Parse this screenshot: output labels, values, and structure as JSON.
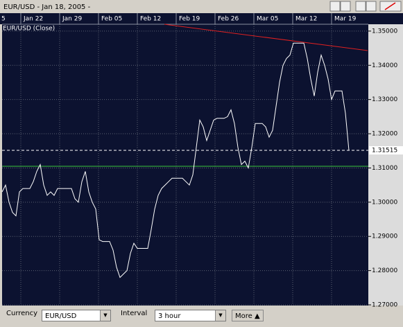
{
  "window_title": "EUR/USD - Jan 18, 2005 -",
  "chart_data": {
    "type": "line",
    "legend_label": "EUR/USD (Close)",
    "x_labels": [
      "5",
      "Jan 22",
      "Jan 29",
      "Feb 05",
      "Feb 12",
      "Feb 19",
      "Feb 26",
      "Mar 05",
      "Mar 12",
      "Mar 19"
    ],
    "ylim": [
      1.27,
      1.352
    ],
    "yticks": [
      {
        "value": 1.27,
        "label": "1.27000"
      },
      {
        "value": 1.28,
        "label": "1.28000"
      },
      {
        "value": 1.29,
        "label": "1.29000"
      },
      {
        "value": 1.3,
        "label": "1.30000"
      },
      {
        "value": 1.31,
        "label": "1.31000"
      },
      {
        "value": 1.32,
        "label": "1.32000"
      },
      {
        "value": 1.33,
        "label": "1.33000"
      },
      {
        "value": 1.34,
        "label": "1.34000"
      },
      {
        "value": 1.35,
        "label": "1.35000"
      }
    ],
    "grid": true,
    "series": [
      {
        "name": "EUR/USD (Close)",
        "color": "#ffffff",
        "values": [
          1.303,
          1.305,
          1.3,
          1.297,
          1.296,
          1.303,
          1.304,
          1.304,
          1.304,
          1.306,
          1.309,
          1.311,
          1.305,
          1.302,
          1.303,
          1.302,
          1.304,
          1.304,
          1.304,
          1.304,
          1.304,
          1.301,
          1.3,
          1.306,
          1.309,
          1.303,
          1.3,
          1.298,
          1.289,
          1.2885,
          1.2885,
          1.2885,
          1.286,
          1.281,
          1.278,
          1.279,
          1.28,
          1.285,
          1.288,
          1.2865,
          1.2865,
          1.2865,
          1.2865,
          1.292,
          1.298,
          1.302,
          1.304,
          1.305,
          1.306,
          1.307,
          1.307,
          1.307,
          1.307,
          1.306,
          1.305,
          1.308,
          1.316,
          1.324,
          1.322,
          1.318,
          1.321,
          1.324,
          1.3245,
          1.3245,
          1.3245,
          1.325,
          1.327,
          1.323,
          1.316,
          1.311,
          1.312,
          1.31,
          1.316,
          1.323,
          1.323,
          1.323,
          1.322,
          1.319,
          1.321,
          1.328,
          1.335,
          1.34,
          1.342,
          1.343,
          1.3465,
          1.3465,
          1.3465,
          1.3465,
          1.342,
          1.336,
          1.331,
          1.338,
          1.343,
          1.34,
          1.336,
          1.33,
          1.3325,
          1.3325,
          1.3325,
          1.326,
          1.31515
        ]
      }
    ],
    "current_price": {
      "value": 1.31515,
      "label": "1.31515"
    },
    "support_line": {
      "value": 1.3105,
      "color": "#3cc83c"
    },
    "trendline": {
      "color": "#e02020",
      "values": [
        1.352,
        1.3443
      ]
    }
  },
  "controls": {
    "currency_label": "Currency",
    "currency": "EUR/USD",
    "interval_label": "Interval",
    "interval": "3 hour",
    "more": "More"
  }
}
